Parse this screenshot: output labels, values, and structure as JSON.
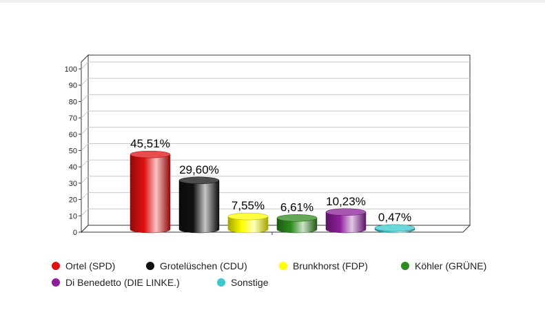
{
  "chart_data": {
    "type": "bar",
    "categories": [
      "Ortel (SPD)",
      "Grotelüschen (CDU)",
      "Brunkhorst (FDP)",
      "Köhler (GRÜNE)",
      "Di Benedetto (DIE LINKE.)",
      "Sonstige"
    ],
    "values": [
      45.51,
      29.6,
      7.55,
      6.61,
      10.23,
      0.47
    ],
    "value_labels": [
      "45,51%",
      "29,60%",
      "7,55%",
      "6,61%",
      "10,23%",
      "0,47%"
    ],
    "colors": [
      "#e01010",
      "#111111",
      "#ffff00",
      "#2e8b1e",
      "#8e1e9c",
      "#3cc8cc"
    ],
    "ylim": [
      0,
      100
    ],
    "yticks": [
      "0",
      "10",
      "20",
      "30",
      "40",
      "50",
      "60",
      "70",
      "80",
      "90",
      "100"
    ],
    "grid": true,
    "legend_position": "bottom"
  }
}
